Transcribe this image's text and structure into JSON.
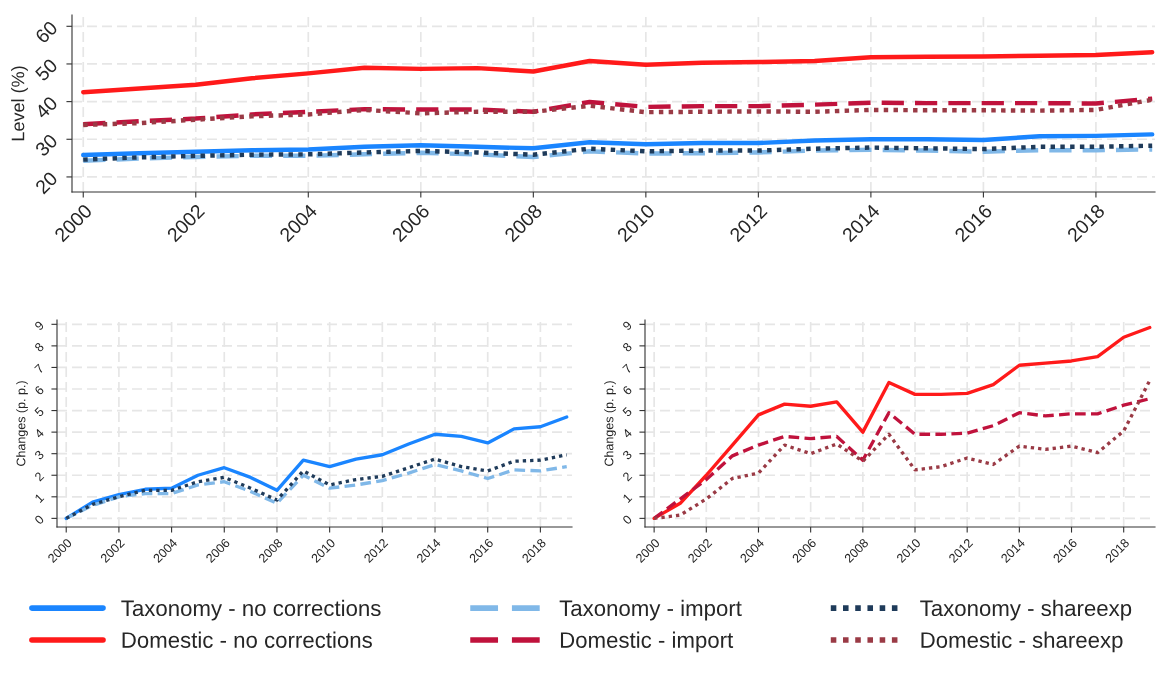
{
  "chart_data": [
    {
      "type": "line",
      "ylabel": "Level (%)",
      "x": [
        2000,
        2001,
        2002,
        2003,
        2004,
        2005,
        2006,
        2007,
        2008,
        2009,
        2010,
        2011,
        2012,
        2013,
        2014,
        2015,
        2016,
        2017,
        2018,
        2019
      ],
      "xlim": [
        1999.8,
        2019.05
      ],
      "xticks": [
        2000,
        2002,
        2004,
        2006,
        2008,
        2010,
        2012,
        2014,
        2016,
        2018
      ],
      "ylim": [
        16,
        63
      ],
      "yticks": [
        20,
        30,
        40,
        50,
        60
      ],
      "grid": true,
      "legend": "bottom",
      "series": [
        {
          "name": "Taxonomy - no corrections",
          "color": "#1a85ff",
          "line_style": "solid",
          "values": [
            25.8,
            26.3,
            26.7,
            27.1,
            27.3,
            28.0,
            28.4,
            28.0,
            27.6,
            29.2,
            28.7,
            29.0,
            29.0,
            29.7,
            30.0,
            30.0,
            29.8,
            30.8,
            30.9,
            31.3
          ]
        },
        {
          "name": "Domestic - no corrections",
          "color": "#ff1a1a",
          "line_style": "solid",
          "values": [
            42.5,
            43.5,
            44.5,
            46.2,
            47.5,
            49.0,
            48.7,
            48.9,
            48.0,
            50.8,
            49.8,
            50.3,
            50.5,
            50.8,
            51.8,
            51.9,
            52.0,
            52.2,
            52.4,
            53.1
          ]
        },
        {
          "name": "Taxonomy - import",
          "color": "#80b8e8",
          "line_style": "dashed",
          "values": [
            24.3,
            24.9,
            25.3,
            25.6,
            25.6,
            26.0,
            26.4,
            26.0,
            25.3,
            26.8,
            26.2,
            26.3,
            26.5,
            27.0,
            27.2,
            27.0,
            26.7,
            27.1,
            27.1,
            27.3
          ]
        },
        {
          "name": "Domestic - import",
          "color": "#c0123c",
          "line_style": "dashed",
          "values": [
            34.0,
            34.8,
            35.5,
            36.6,
            37.3,
            38.0,
            37.9,
            37.9,
            37.3,
            39.9,
            38.6,
            38.8,
            38.8,
            39.2,
            39.7,
            39.6,
            39.6,
            39.6,
            39.5,
            40.8
          ]
        },
        {
          "name": "Taxonomy - shareexp",
          "color": "#1f3b5a",
          "line_style": "dotted",
          "values": [
            24.6,
            25.2,
            25.6,
            25.9,
            26.0,
            26.5,
            26.9,
            26.5,
            25.9,
            27.5,
            26.8,
            27.0,
            27.0,
            27.5,
            27.8,
            27.6,
            27.4,
            28.0,
            28.0,
            28.3
          ]
        },
        {
          "name": "Domestic - shareexp",
          "color": "#9a3a45",
          "line_style": "dotted",
          "values": [
            33.8,
            34.3,
            35.2,
            36.1,
            36.6,
            37.8,
            36.9,
            37.3,
            37.3,
            38.9,
            37.2,
            37.3,
            37.4,
            37.3,
            37.8,
            37.7,
            37.7,
            37.6,
            37.8,
            40.5
          ]
        }
      ]
    },
    {
      "type": "line",
      "ylabel": "Changes (p. p.)",
      "x": [
        2000,
        2001,
        2002,
        2003,
        2004,
        2005,
        2006,
        2007,
        2008,
        2009,
        2010,
        2011,
        2012,
        2013,
        2014,
        2015,
        2016,
        2017,
        2018,
        2019
      ],
      "xlim": [
        1999.65,
        2019.2
      ],
      "xticks": [
        2000,
        2002,
        2004,
        2006,
        2008,
        2010,
        2012,
        2014,
        2016,
        2018
      ],
      "ylim": [
        -0.4,
        9.2
      ],
      "yticks": [
        0,
        1,
        2,
        3,
        4,
        5,
        6,
        7,
        8,
        9
      ],
      "grid": true,
      "series": [
        {
          "name": "Taxonomy - no corrections",
          "color": "#1a85ff",
          "line_style": "solid",
          "values": [
            0,
            0.75,
            1.1,
            1.35,
            1.4,
            2.0,
            2.35,
            1.9,
            1.3,
            2.7,
            2.4,
            2.75,
            2.95,
            3.45,
            3.9,
            3.8,
            3.5,
            4.15,
            4.25,
            4.7
          ]
        },
        {
          "name": "Taxonomy - import",
          "color": "#80b8e8",
          "line_style": "dashed",
          "values": [
            0,
            0.6,
            1.0,
            1.15,
            1.15,
            1.55,
            1.7,
            1.25,
            0.7,
            2.0,
            1.4,
            1.55,
            1.75,
            2.1,
            2.5,
            2.2,
            1.85,
            2.25,
            2.2,
            2.4
          ]
        },
        {
          "name": "Taxonomy - shareexp",
          "color": "#1f3b5a",
          "line_style": "dotted",
          "values": [
            0,
            0.65,
            1.0,
            1.3,
            1.3,
            1.7,
            1.9,
            1.4,
            0.85,
            2.2,
            1.55,
            1.8,
            1.95,
            2.35,
            2.75,
            2.4,
            2.2,
            2.65,
            2.7,
            2.95
          ]
        }
      ]
    },
    {
      "type": "line",
      "ylabel": "Changes (p. p.)",
      "x": [
        2000,
        2001,
        2002,
        2003,
        2004,
        2005,
        2006,
        2007,
        2008,
        2009,
        2010,
        2011,
        2012,
        2013,
        2014,
        2015,
        2016,
        2017,
        2018,
        2019
      ],
      "xlim": [
        1999.65,
        2019.2
      ],
      "xticks": [
        2000,
        2002,
        2004,
        2006,
        2008,
        2010,
        2012,
        2014,
        2016,
        2018
      ],
      "ylim": [
        -0.4,
        9.2
      ],
      "yticks": [
        0,
        1,
        2,
        3,
        4,
        5,
        6,
        7,
        8,
        9
      ],
      "grid": true,
      "series": [
        {
          "name": "Domestic - no corrections",
          "color": "#ff1a1a",
          "line_style": "solid",
          "values": [
            0,
            0.7,
            2.0,
            3.4,
            4.8,
            5.3,
            5.2,
            5.4,
            4.0,
            6.3,
            5.75,
            5.75,
            5.8,
            6.2,
            7.1,
            7.2,
            7.3,
            7.5,
            8.4,
            8.85
          ]
        },
        {
          "name": "Domestic - import",
          "color": "#c0123c",
          "line_style": "dashed",
          "values": [
            0,
            0.9,
            1.8,
            2.9,
            3.4,
            3.8,
            3.7,
            3.8,
            2.7,
            4.9,
            3.9,
            3.9,
            3.95,
            4.3,
            4.9,
            4.75,
            4.85,
            4.85,
            5.25,
            5.55
          ]
        },
        {
          "name": "Domestic - shareexp",
          "color": "#9a3a45",
          "line_style": "dotted",
          "values": [
            0,
            0.15,
            0.9,
            1.85,
            2.1,
            3.4,
            3.0,
            3.45,
            2.65,
            3.9,
            2.25,
            2.4,
            2.8,
            2.5,
            3.35,
            3.2,
            3.35,
            3.05,
            4.05,
            6.4
          ]
        }
      ]
    }
  ]
}
